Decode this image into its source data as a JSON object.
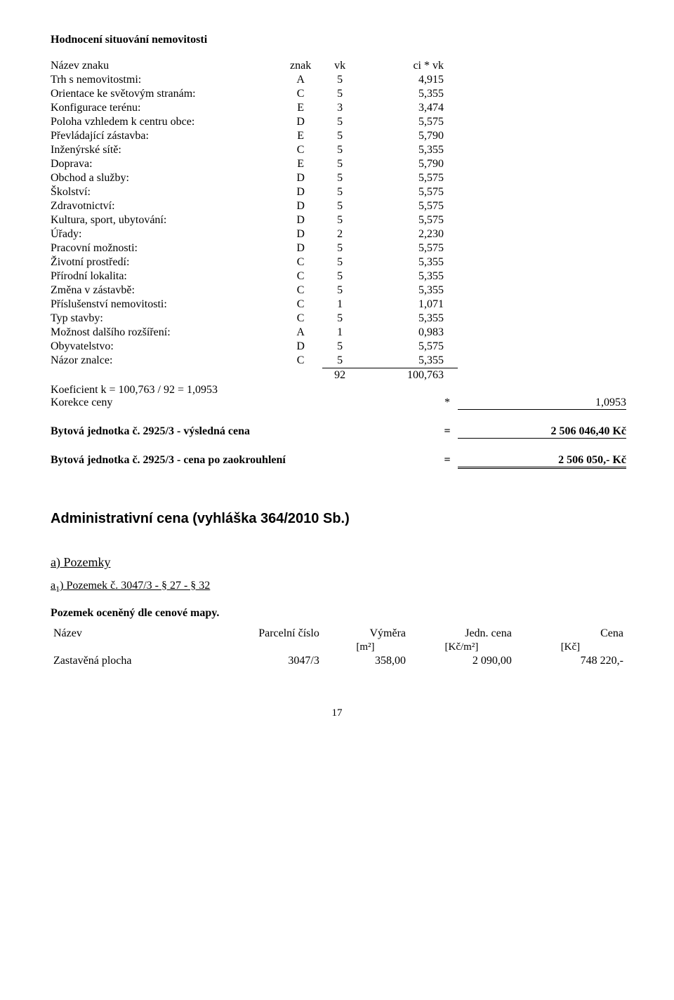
{
  "section_title": "Hodnocení situování nemovitosti",
  "eval_header": {
    "name": "Název znaku",
    "znak": "znak",
    "vk": "vk",
    "civk": "ci * vk"
  },
  "eval_rows": [
    {
      "label": "Trh s nemovitostmi:",
      "znak": "A",
      "vk": "5",
      "civk": "4,915"
    },
    {
      "label": "Orientace ke světovým stranám:",
      "znak": "C",
      "vk": "5",
      "civk": "5,355"
    },
    {
      "label": "Konfigurace terénu:",
      "znak": "E",
      "vk": "3",
      "civk": "3,474"
    },
    {
      "label": "Poloha vzhledem k centru obce:",
      "znak": "D",
      "vk": "5",
      "civk": "5,575"
    },
    {
      "label": "Převládající zástavba:",
      "znak": "E",
      "vk": "5",
      "civk": "5,790"
    },
    {
      "label": "Inženýrské sítě:",
      "znak": "C",
      "vk": "5",
      "civk": "5,355"
    },
    {
      "label": "Doprava:",
      "znak": "E",
      "vk": "5",
      "civk": "5,790"
    },
    {
      "label": "Obchod a služby:",
      "znak": "D",
      "vk": "5",
      "civk": "5,575"
    },
    {
      "label": "Školství:",
      "znak": "D",
      "vk": "5",
      "civk": "5,575"
    },
    {
      "label": "Zdravotnictví:",
      "znak": "D",
      "vk": "5",
      "civk": "5,575"
    },
    {
      "label": "Kultura, sport, ubytování:",
      "znak": "D",
      "vk": "5",
      "civk": "5,575"
    },
    {
      "label": "Úřady:",
      "znak": "D",
      "vk": "2",
      "civk": "2,230"
    },
    {
      "label": "Pracovní možnosti:",
      "znak": "D",
      "vk": "5",
      "civk": "5,575"
    },
    {
      "label": "Životní prostředí:",
      "znak": "C",
      "vk": "5",
      "civk": "5,355"
    },
    {
      "label": "Přírodní lokalita:",
      "znak": "C",
      "vk": "5",
      "civk": "5,355"
    },
    {
      "label": "Změna v zástavbě:",
      "znak": "C",
      "vk": "5",
      "civk": "5,355"
    },
    {
      "label": "Příslušenství nemovitosti:",
      "znak": "C",
      "vk": "1",
      "civk": "1,071"
    },
    {
      "label": "Typ stavby:",
      "znak": "C",
      "vk": "5",
      "civk": "5,355"
    },
    {
      "label": "Možnost dalšího rozšíření:",
      "znak": "A",
      "vk": "1",
      "civk": "0,983"
    },
    {
      "label": "Obyvatelstvo:",
      "znak": "D",
      "vk": "5",
      "civk": "5,575"
    },
    {
      "label": "Názor znalce:",
      "znak": "C",
      "vk": "5",
      "civk": "5,355"
    }
  ],
  "sum": {
    "vk": "92",
    "civk": "100,763"
  },
  "coef_line": "Koeficient k = 100,763 / 92 = 1,0953",
  "korekce": {
    "label": "Korekce ceny",
    "op": "*",
    "value": "1,0953"
  },
  "result1": {
    "label": "Bytová jednotka č. 2925/3 - výsledná cena",
    "op": "=",
    "value": "2 506 046,40 Kč"
  },
  "result2": {
    "label": "Bytová jednotka č. 2925/3 - cena po zaokrouhlení",
    "op": "=",
    "value": "2 506 050,- Kč"
  },
  "admin_title": "Administrativní cena (vyhláška 364/2010 Sb.)",
  "sub_a": "a) Pozemky",
  "sub_a1_prefix": "a",
  "sub_a1_sub": "1",
  "sub_a1_rest": ") Pozemek č. 3047/3  - § 27 - § 32",
  "parcel_title": "Pozemek oceněný dle cenové mapy.",
  "parcel_header": {
    "c1": "Název",
    "c2": "Parcelní číslo",
    "c3": "Výměra",
    "c4": "Jedn. cena",
    "c5": "Cena"
  },
  "parcel_units": {
    "c3": "[m²]",
    "c4": "[Kč/m²]",
    "c5": "[Kč]"
  },
  "parcel_row": {
    "c1": "Zastavěná plocha",
    "c2": "3047/3",
    "c3": "358,00",
    "c4": "2 090,00",
    "c5": "748 220,-"
  },
  "page_num": "17"
}
